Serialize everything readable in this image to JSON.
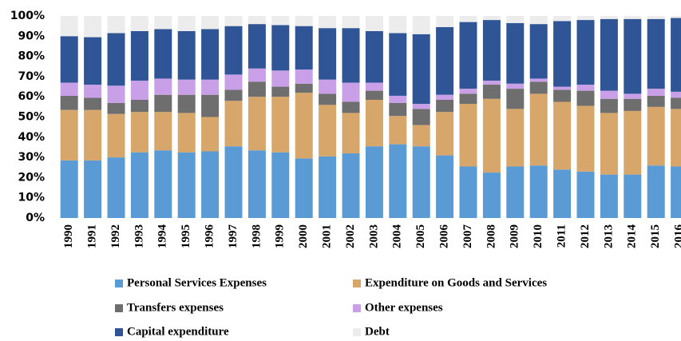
{
  "chart_data": {
    "type": "stacked_bar",
    "categories": [
      "1990",
      "1991",
      "1992",
      "1993",
      "1994",
      "1995",
      "1996",
      "1997",
      "1998",
      "1999",
      "2000",
      "2001",
      "2002",
      "2003",
      "2004",
      "2005",
      "2006",
      "2007",
      "2008",
      "2009",
      "2010",
      "2011",
      "2012",
      "2013",
      "2014",
      "2015",
      "2016"
    ],
    "series": [
      {
        "name": "Personal Services Expenses",
        "color": "#5b9bd5",
        "values": [
          28.5,
          28.5,
          30,
          32.5,
          33.5,
          32.5,
          33,
          35.5,
          33.5,
          32.5,
          29.5,
          30.5,
          32,
          35.5,
          36.5,
          35.5,
          31,
          25.5,
          22.5,
          25.5,
          26,
          24,
          23,
          21.5,
          21.5,
          26,
          25.5
        ]
      },
      {
        "name": "Expenditure on Goods and Services",
        "color": "#d6a66a",
        "values": [
          25,
          25,
          21.5,
          20,
          19,
          19.5,
          17,
          22.5,
          26.5,
          27.5,
          32.5,
          25.5,
          20,
          23,
          14,
          10.5,
          21.5,
          31,
          36.5,
          28.5,
          35.5,
          33.5,
          32.5,
          30.5,
          31.5,
          29,
          28.5
        ]
      },
      {
        "name": "Transfers expenses",
        "color": "#6e6e6e",
        "values": [
          7,
          6,
          5.5,
          6,
          8.5,
          9,
          11,
          5.5,
          7.5,
          5,
          4.5,
          5.5,
          5.5,
          4.5,
          6.5,
          8,
          6,
          5,
          7,
          10,
          6,
          6,
          7.5,
          7,
          6,
          5.5,
          5.5
        ]
      },
      {
        "name": "Other expenses",
        "color": "#c9a0e8",
        "values": [
          6.5,
          6.5,
          8.5,
          9.5,
          8,
          7.5,
          7.5,
          7.5,
          6.5,
          8,
          7,
          7,
          9.5,
          4,
          3.5,
          2.5,
          2.5,
          2.5,
          2,
          2.5,
          1.5,
          1.5,
          3,
          4,
          2.5,
          3.5,
          3
        ]
      },
      {
        "name": "Capital expenditure",
        "color": "#2f5597",
        "values": [
          23,
          23.5,
          26,
          24.5,
          24.5,
          24,
          25,
          24,
          22,
          22.5,
          21.5,
          25.5,
          27,
          25.5,
          31,
          34.5,
          33.5,
          33,
          30,
          30,
          27,
          32.5,
          32,
          35.5,
          37,
          34.5,
          36.5
        ]
      },
      {
        "name": "Debt",
        "color": "#ececec",
        "values": [
          10,
          10.5,
          8.5,
          7.5,
          6.5,
          7.5,
          6.5,
          5,
          4,
          4.5,
          5,
          6,
          6,
          7.5,
          8.5,
          9,
          5.5,
          3,
          2,
          3.5,
          4,
          2.5,
          2,
          1.5,
          1.5,
          1.5,
          1
        ]
      }
    ],
    "ylim": [
      0,
      100
    ],
    "yticks": [
      {
        "value": 0,
        "label": "0%"
      },
      {
        "value": 10,
        "label": "10%"
      },
      {
        "value": 20,
        "label": "20%"
      },
      {
        "value": 30,
        "label": "30%"
      },
      {
        "value": 40,
        "label": "40%"
      },
      {
        "value": 50,
        "label": "50%"
      },
      {
        "value": 60,
        "label": "60%"
      },
      {
        "value": 70,
        "label": "70%"
      },
      {
        "value": 80,
        "label": "80%"
      },
      {
        "value": 90,
        "label": "90%"
      },
      {
        "value": 100,
        "label": "100%"
      }
    ],
    "grid": false
  }
}
